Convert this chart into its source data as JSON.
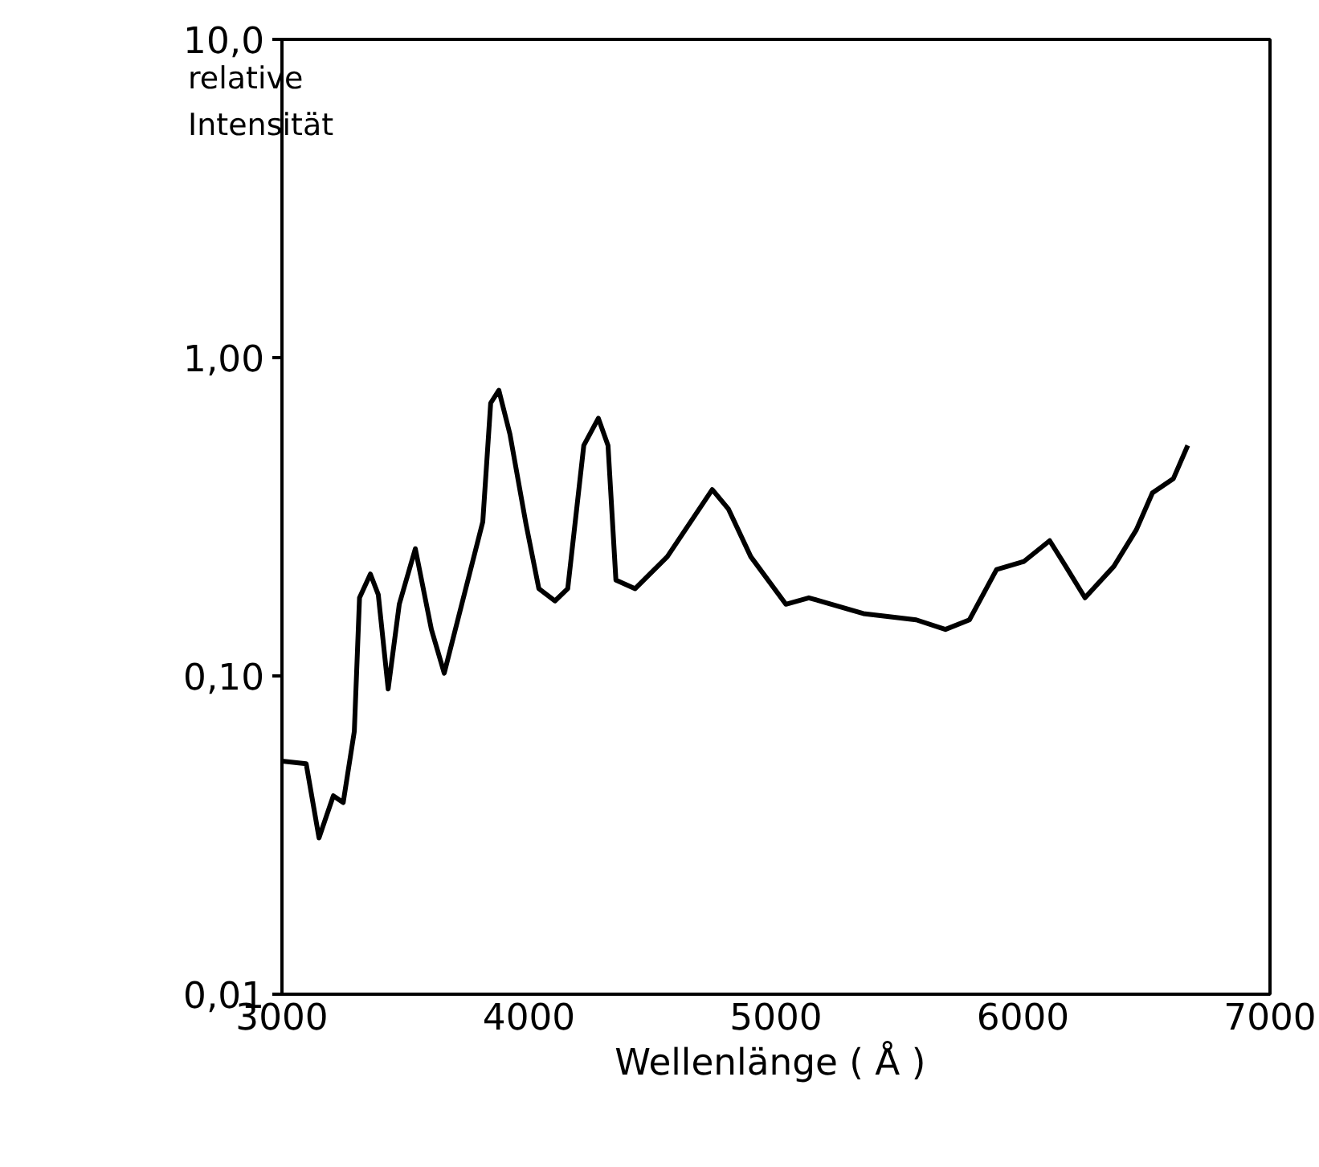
{
  "chart_data": {
    "type": "line",
    "xlabel": "Wellenlänge  ( Å )",
    "ylabel": "relative\nIntensität",
    "log": "y",
    "grid": false,
    "marker": "none",
    "line_style": "solid",
    "xlim": [
      3000,
      7000
    ],
    "xticks": [
      3000,
      4000,
      5000,
      6000,
      7000
    ],
    "ylim": [
      0.01,
      10
    ],
    "yticks": [
      {
        "value": 0.01,
        "label": "0,01"
      },
      {
        "value": 0.1,
        "label": "0,10"
      },
      {
        "value": 1,
        "label": "1,00"
      },
      {
        "value": 10,
        "label": "10,0"
      }
    ],
    "series": [
      {
        "color": "#000000",
        "x": [
          3000,
          3098,
          3150,
          3208,
          3248,
          3293,
          3314,
          3358,
          3390,
          3430,
          3475,
          3540,
          3605,
          3657,
          3728,
          3813,
          3845,
          3878,
          3923,
          3988,
          4040,
          4105,
          4157,
          4222,
          4281,
          4320,
          4352,
          4430,
          4560,
          4742,
          4807,
          4898,
          5040,
          5133,
          5354,
          5568,
          5686,
          5783,
          5893,
          6004,
          6108,
          6173,
          6251,
          6368,
          6459,
          6524,
          6609,
          6667
        ],
        "values": [
          0.054,
          0.053,
          0.031,
          0.042,
          0.04,
          0.067,
          0.176,
          0.209,
          0.18,
          0.091,
          0.168,
          0.251,
          0.14,
          0.102,
          0.168,
          0.305,
          0.72,
          0.79,
          0.575,
          0.3,
          0.188,
          0.172,
          0.188,
          0.53,
          0.645,
          0.53,
          0.2,
          0.188,
          0.237,
          0.385,
          0.335,
          0.237,
          0.168,
          0.176,
          0.157,
          0.15,
          0.14,
          0.15,
          0.216,
          0.229,
          0.266,
          0.221,
          0.176,
          0.221,
          0.288,
          0.376,
          0.417,
          0.53
        ]
      }
    ]
  }
}
